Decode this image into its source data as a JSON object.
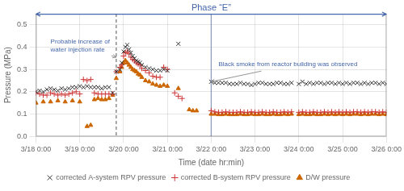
{
  "chart_data": {
    "type": "scatter",
    "title": "Phase “E”",
    "x_label": "Time (date hr:min)",
    "y_label": "Pressure (MPa)",
    "xlim": [
      0,
      192
    ],
    "xticks": [
      {
        "value": 0,
        "label": "3/18 0:00"
      },
      {
        "value": 24,
        "label": "3/19 0:00"
      },
      {
        "value": 48,
        "label": "3/20 0:00"
      },
      {
        "value": 72,
        "label": "3/21 0:00"
      },
      {
        "value": 96,
        "label": "3/22 0:00"
      },
      {
        "value": 120,
        "label": "3/23 0:00"
      },
      {
        "value": 144,
        "label": "3/24 0:00"
      },
      {
        "value": 168,
        "label": "3/25 0:00"
      },
      {
        "value": 192,
        "label": "3/26 0:00"
      }
    ],
    "ylim": [
      0.0,
      0.55
    ],
    "yticks": [
      {
        "value": 0.0,
        "label": "0.0"
      },
      0.1,
      0.2,
      0.3,
      0.4,
      0.5
    ],
    "grid": true,
    "legend": "bottom",
    "series": [
      {
        "name": "corrected A-system RPV pressure",
        "color": "#333333",
        "marker": "x",
        "x": [
          0,
          2,
          4,
          6,
          8,
          10,
          12,
          14,
          16,
          18,
          20,
          22,
          24,
          26,
          28,
          30,
          32,
          34,
          36,
          38,
          40,
          42,
          44,
          46,
          47,
          48,
          49,
          50,
          51,
          52,
          53,
          54,
          55,
          56,
          57,
          58,
          60,
          62,
          64,
          66,
          68,
          70,
          72,
          78,
          96,
          98,
          100,
          102,
          104,
          106,
          108,
          110,
          112,
          114,
          116,
          118,
          120,
          122,
          124,
          126,
          128,
          130,
          132,
          134,
          136,
          138,
          140,
          144,
          146,
          148,
          150,
          152,
          154,
          156,
          158,
          160,
          162,
          164,
          166,
          168,
          170,
          172,
          174,
          176,
          178,
          180,
          182,
          184,
          186,
          188,
          190,
          192
        ],
        "values": [
          0.2,
          0.205,
          0.2,
          0.21,
          0.215,
          0.21,
          0.205,
          0.215,
          0.21,
          0.215,
          0.22,
          0.22,
          0.225,
          0.22,
          0.225,
          0.22,
          0.22,
          0.22,
          0.215,
          0.22,
          0.22,
          0.195,
          0.29,
          0.3,
          0.33,
          0.38,
          0.4,
          0.41,
          0.39,
          0.375,
          0.36,
          0.35,
          0.34,
          0.335,
          0.33,
          0.32,
          0.31,
          0.305,
          0.3,
          0.295,
          0.295,
          0.3,
          0.295,
          0.415,
          0.245,
          0.24,
          0.24,
          0.24,
          0.24,
          0.235,
          0.235,
          0.235,
          0.24,
          0.235,
          0.235,
          0.23,
          0.235,
          0.24,
          0.24,
          0.235,
          0.235,
          0.235,
          0.24,
          0.24,
          0.235,
          0.235,
          0.24,
          0.235,
          0.245,
          0.235,
          0.24,
          0.235,
          0.24,
          0.24,
          0.235,
          0.24,
          0.24,
          0.235,
          0.24,
          0.235,
          0.24,
          0.235,
          0.24,
          0.24,
          0.235,
          0.24,
          0.235,
          0.24,
          0.24,
          0.235,
          0.24,
          0.235
        ]
      },
      {
        "name": "corrected B-system RPV pressure",
        "color": "#cc3333",
        "marker": "plus",
        "x": [
          0,
          2,
          4,
          6,
          8,
          10,
          12,
          14,
          16,
          18,
          20,
          22,
          24,
          26,
          28,
          30,
          32,
          34,
          36,
          38,
          40,
          42,
          44,
          46,
          47,
          48,
          49,
          50,
          51,
          52,
          53,
          54,
          55,
          56,
          57,
          58,
          60,
          62,
          64,
          66,
          68,
          70,
          72,
          76,
          78,
          80,
          96,
          98,
          100,
          102,
          104,
          106,
          108,
          110,
          112,
          114,
          116,
          118,
          120,
          122,
          124,
          126,
          128,
          130,
          132,
          134,
          136,
          138,
          140,
          144,
          146,
          148,
          150,
          152,
          154,
          156,
          158,
          160,
          162,
          164,
          166,
          168,
          170,
          172,
          174,
          176,
          178,
          180,
          182,
          184,
          186,
          188,
          190,
          192
        ],
        "values": [
          0.195,
          0.19,
          0.185,
          0.185,
          0.195,
          0.19,
          0.185,
          0.19,
          0.185,
          0.19,
          0.195,
          0.2,
          0.19,
          0.255,
          0.25,
          0.255,
          0.195,
          0.19,
          0.19,
          0.19,
          0.19,
          0.19,
          0.29,
          0.31,
          0.32,
          0.36,
          0.375,
          0.38,
          0.37,
          0.355,
          0.345,
          0.34,
          0.33,
          0.325,
          0.32,
          0.305,
          0.295,
          0.285,
          0.27,
          0.265,
          0.265,
          0.31,
          0.3,
          0.195,
          0.18,
          0.17,
          0.115,
          0.11,
          0.108,
          0.108,
          0.11,
          0.108,
          0.108,
          0.108,
          0.11,
          0.108,
          0.108,
          0.11,
          0.108,
          0.108,
          0.11,
          0.108,
          0.108,
          0.11,
          0.108,
          0.108,
          0.11,
          0.108,
          0.11,
          0.108,
          0.11,
          0.108,
          0.108,
          0.11,
          0.108,
          0.108,
          0.11,
          0.108,
          0.11,
          0.108,
          0.11,
          0.108,
          0.11,
          0.108,
          0.11,
          0.11,
          0.108,
          0.11,
          0.108,
          0.11,
          0.11,
          0.108,
          0.11,
          0.108
        ]
      },
      {
        "name": "D/W pressure",
        "color": "#cc6600",
        "marker": "triangle",
        "x": [
          0,
          4,
          8,
          12,
          16,
          20,
          24,
          28,
          30,
          32,
          34,
          36,
          38,
          40,
          42,
          44,
          46,
          47,
          48,
          49,
          50,
          51,
          52,
          53,
          54,
          55,
          56,
          57,
          58,
          60,
          62,
          64,
          66,
          68,
          70,
          72,
          78,
          84,
          86,
          88,
          96,
          98,
          100,
          102,
          104,
          106,
          108,
          110,
          112,
          114,
          116,
          118,
          120,
          122,
          124,
          126,
          128,
          130,
          132,
          134,
          136,
          138,
          140,
          144,
          146,
          148,
          150,
          152,
          154,
          156,
          158,
          160,
          162,
          164,
          166,
          168,
          170,
          172,
          174,
          176,
          178,
          180,
          182,
          184,
          186,
          188,
          190,
          192
        ],
        "values": [
          0.15,
          0.155,
          0.155,
          0.16,
          0.155,
          0.16,
          0.155,
          0.045,
          0.05,
          0.165,
          0.17,
          0.165,
          0.165,
          0.17,
          0.185,
          0.26,
          0.29,
          0.31,
          0.33,
          0.34,
          0.33,
          0.32,
          0.31,
          0.3,
          0.295,
          0.29,
          0.28,
          0.275,
          0.265,
          0.25,
          0.245,
          0.235,
          0.23,
          0.225,
          0.23,
          0.225,
          0.215,
          0.12,
          0.115,
          0.115,
          0.1,
          0.1,
          0.098,
          0.098,
          0.1,
          0.098,
          0.098,
          0.098,
          0.1,
          0.098,
          0.098,
          0.1,
          0.098,
          0.098,
          0.1,
          0.098,
          0.098,
          0.1,
          0.098,
          0.098,
          0.1,
          0.098,
          0.1,
          0.098,
          0.1,
          0.098,
          0.098,
          0.1,
          0.098,
          0.098,
          0.1,
          0.098,
          0.1,
          0.098,
          0.1,
          0.098,
          0.1,
          0.098,
          0.1,
          0.1,
          0.098,
          0.1,
          0.098,
          0.1,
          0.1,
          0.098,
          0.1,
          0.098
        ]
      }
    ],
    "vertical_lines": [
      {
        "x": 44,
        "color": "#555555",
        "line_style": "dashed"
      },
      {
        "x": 96,
        "color": "#8899bb",
        "line_style": "solid"
      }
    ],
    "annotations": [
      {
        "text": "Probable increase of\nwater injection rate",
        "x": 44,
        "y": 0.355,
        "text_x": 8,
        "text_y": 0.44,
        "color": "#4466aa"
      },
      {
        "text": "Black smoke from reactor building was observed",
        "x": 96,
        "y": 0.245,
        "text_x": 100,
        "text_y": 0.3,
        "color": "#4466aa"
      }
    ],
    "phase_arrow": {
      "x1": 0,
      "x2": 192,
      "y": 0.548,
      "color": "#4466aa"
    }
  }
}
